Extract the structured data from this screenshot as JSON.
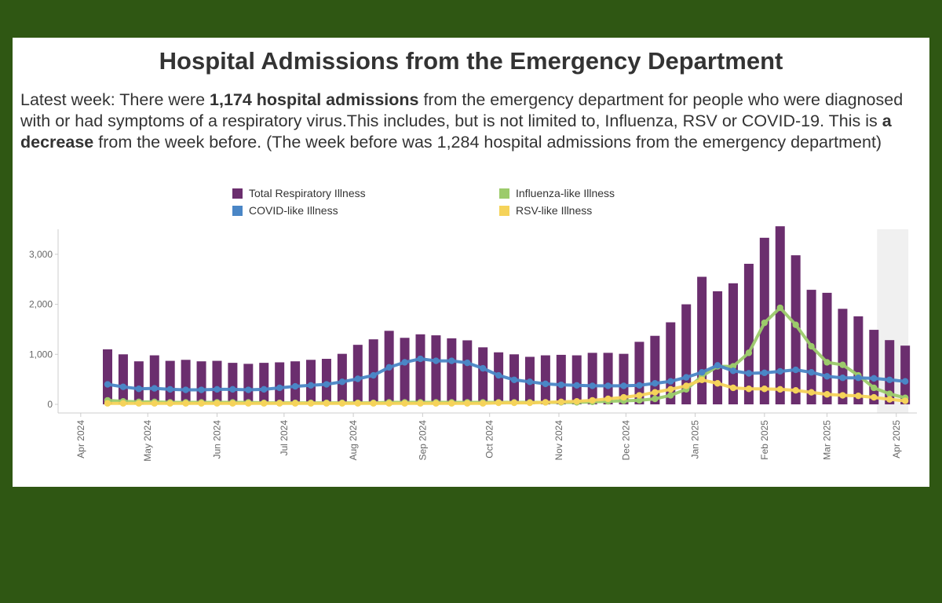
{
  "title": "Hospital Admissions from the Emergency Department",
  "summary": {
    "p1": "Latest week: There were ",
    "b1": "1,174 hospital admissions",
    "p2": " from the emergency department for people who were diagnosed with or had symptoms of a respiratory virus.This includes, but is not limited to, Influenza, RSV or COVID-19. This is ",
    "b2": "a decrease",
    "p3": " from the week before. (The week before was 1,284 hospital admissions from the emergency department)"
  },
  "legend": [
    {
      "label": "Total Respiratory Illness",
      "color": "#6b2e6e"
    },
    {
      "label": "Influenza-like Illness",
      "color": "#9ccb6b"
    },
    {
      "label": "COVID-like Illness",
      "color": "#4a86c6"
    },
    {
      "label": "RSV-like Illness",
      "color": "#f5d35a"
    }
  ],
  "chart_data": {
    "type": "bar",
    "title": "Hospital Admissions from the Emergency Department",
    "xlabel": "",
    "ylabel": "",
    "ylim": [
      0,
      3500
    ],
    "yticks": [
      0,
      1000,
      2000,
      3000
    ],
    "ytick_labels": [
      "0",
      "1,000",
      "2,000",
      "3,000"
    ],
    "grid": false,
    "legend_position": "top-center",
    "xlim": [
      "2024-03-31",
      "2025-04-06"
    ],
    "month_ticks": [
      {
        "date": "2024-04-01",
        "label": "Apr 2024"
      },
      {
        "date": "2024-05-01",
        "label": "May 2024"
      },
      {
        "date": "2024-06-01",
        "label": "Jun 2024"
      },
      {
        "date": "2024-07-01",
        "label": "Jul 2024"
      },
      {
        "date": "2024-08-01",
        "label": "Aug 2024"
      },
      {
        "date": "2024-09-01",
        "label": "Sep 2024"
      },
      {
        "date": "2024-10-01",
        "label": "Oct 2024"
      },
      {
        "date": "2024-11-01",
        "label": "Nov 2024"
      },
      {
        "date": "2024-12-01",
        "label": "Dec 2024"
      },
      {
        "date": "2025-01-01",
        "label": "Jan 2025"
      },
      {
        "date": "2025-02-01",
        "label": "Feb 2025"
      },
      {
        "date": "2025-03-01",
        "label": "Mar 2025"
      },
      {
        "date": "2025-04-01",
        "label": "Apr 2025"
      }
    ],
    "shaded_range": [
      "2025-03-22",
      "2025-04-05"
    ],
    "weeks": [
      "2024-04-13",
      "2024-04-20",
      "2024-04-27",
      "2024-05-04",
      "2024-05-11",
      "2024-05-18",
      "2024-05-25",
      "2024-06-01",
      "2024-06-08",
      "2024-06-15",
      "2024-06-22",
      "2024-06-29",
      "2024-07-06",
      "2024-07-13",
      "2024-07-20",
      "2024-07-27",
      "2024-08-03",
      "2024-08-10",
      "2024-08-17",
      "2024-08-24",
      "2024-08-31",
      "2024-09-07",
      "2024-09-14",
      "2024-09-21",
      "2024-09-28",
      "2024-10-05",
      "2024-10-12",
      "2024-10-19",
      "2024-10-26",
      "2024-11-02",
      "2024-11-09",
      "2024-11-16",
      "2024-11-23",
      "2024-11-30",
      "2024-12-07",
      "2024-12-14",
      "2024-12-21",
      "2024-12-28",
      "2025-01-04",
      "2025-01-11",
      "2025-01-18",
      "2025-01-25",
      "2025-02-01",
      "2025-02-08",
      "2025-02-15",
      "2025-02-22",
      "2025-03-01",
      "2025-03-08",
      "2025-03-15",
      "2025-03-22",
      "2025-03-29",
      "2025-04-05"
    ],
    "series": [
      {
        "name": "Total Respiratory Illness",
        "kind": "bar",
        "color": "#6b2e6e",
        "values": [
          1100,
          1000,
          860,
          980,
          870,
          890,
          860,
          870,
          830,
          810,
          830,
          840,
          860,
          890,
          910,
          1010,
          1190,
          1300,
          1470,
          1330,
          1400,
          1380,
          1320,
          1280,
          1140,
          1040,
          1000,
          950,
          980,
          990,
          980,
          1030,
          1030,
          1010,
          1250,
          1370,
          1640,
          2000,
          2550,
          2260,
          2420,
          2810,
          3330,
          3560,
          2980,
          2290,
          2230,
          1910,
          1760,
          1490,
          1284,
          1174
        ]
      },
      {
        "name": "COVID-like Illness",
        "kind": "line",
        "color": "#4a86c6",
        "values": [
          400,
          350,
          310,
          320,
          300,
          290,
          290,
          300,
          300,
          290,
          300,
          330,
          360,
          380,
          400,
          450,
          510,
          580,
          740,
          840,
          910,
          870,
          870,
          830,
          720,
          580,
          490,
          450,
          410,
          390,
          380,
          370,
          370,
          370,
          380,
          420,
          460,
          540,
          640,
          780,
          670,
          620,
          630,
          660,
          690,
          640,
          560,
          530,
          530,
          520,
          490,
          460
        ]
      },
      {
        "name": "Influenza-like Illness",
        "kind": "line",
        "color": "#9ccb6b",
        "values": [
          80,
          60,
          50,
          50,
          40,
          40,
          40,
          40,
          40,
          40,
          30,
          30,
          30,
          30,
          30,
          30,
          30,
          30,
          40,
          40,
          40,
          40,
          40,
          40,
          40,
          40,
          40,
          40,
          40,
          40,
          40,
          50,
          60,
          70,
          80,
          110,
          180,
          300,
          560,
          760,
          760,
          1030,
          1630,
          1930,
          1590,
          1160,
          840,
          790,
          580,
          330,
          210,
          130
        ]
      },
      {
        "name": "RSV-like Illness",
        "kind": "line",
        "color": "#f5d35a",
        "values": [
          20,
          20,
          20,
          20,
          20,
          20,
          20,
          20,
          20,
          20,
          20,
          20,
          20,
          20,
          20,
          20,
          20,
          20,
          20,
          20,
          20,
          20,
          20,
          20,
          20,
          30,
          30,
          30,
          40,
          50,
          60,
          80,
          110,
          140,
          180,
          240,
          300,
          370,
          490,
          420,
          330,
          310,
          310,
          300,
          280,
          240,
          200,
          180,
          170,
          140,
          100,
          70
        ]
      }
    ]
  }
}
